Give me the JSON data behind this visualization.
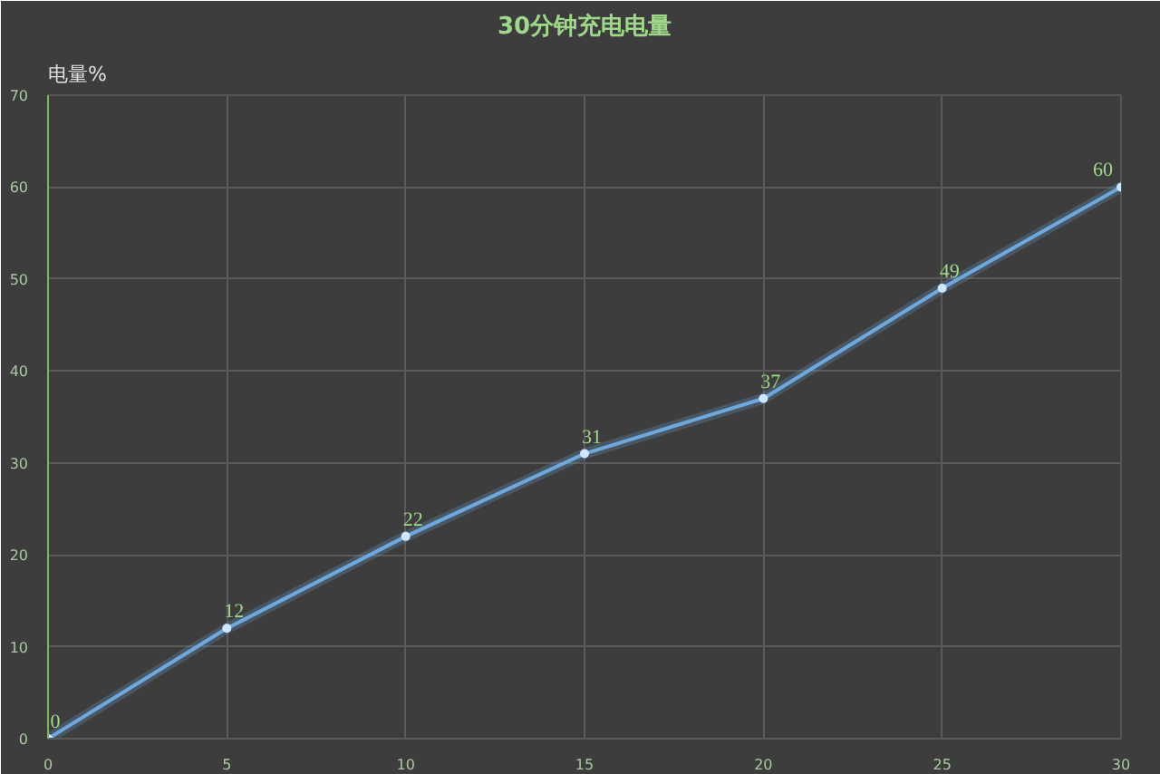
{
  "chart_data": {
    "type": "line",
    "title": "30分钟充电电量",
    "ylabel": "电量%",
    "x": [
      0,
      5,
      10,
      15,
      20,
      25,
      30
    ],
    "series": [
      {
        "color": "#6fa8dc",
        "values": [
          0,
          12,
          22,
          31,
          37,
          49,
          60
        ]
      }
    ],
    "xlim": [
      0,
      30
    ],
    "xticks": [
      0,
      5,
      10,
      15,
      20,
      25,
      30
    ],
    "ylim": [
      0,
      70
    ],
    "yticks": [
      0,
      10,
      20,
      30,
      40,
      50,
      60,
      70
    ],
    "grid": true,
    "data_labels": true,
    "marker": "circle",
    "line_style": "solid"
  }
}
